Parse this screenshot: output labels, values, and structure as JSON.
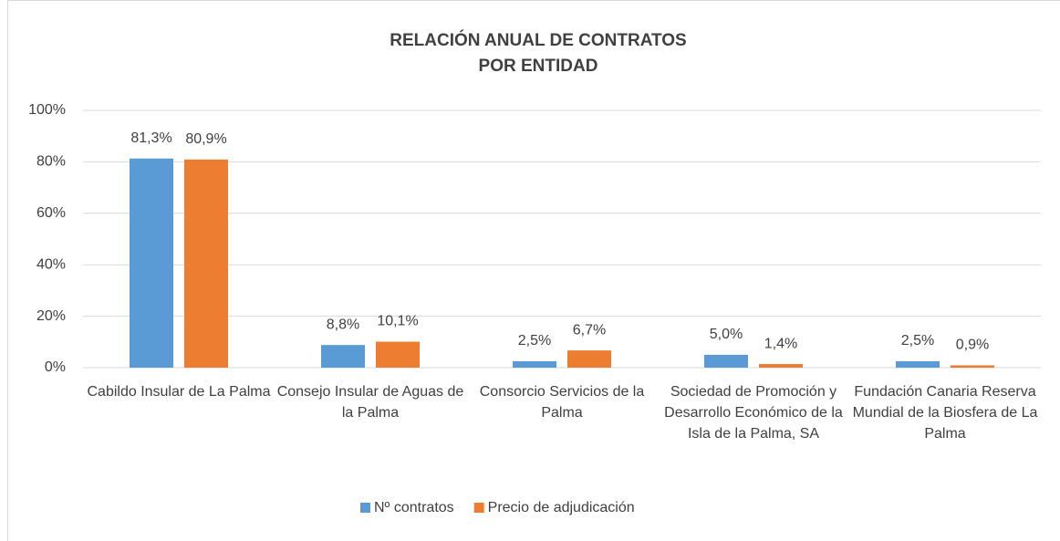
{
  "chart_data": {
    "type": "bar",
    "title": [
      "RELACIÓN ANUAL DE CONTRATOS",
      "POR ENTIDAD"
    ],
    "categories": [
      "Cabildo Insular de La Palma",
      "Consejo Insular de Aguas de la Palma",
      "Consorcio Servicios de la Palma",
      "Sociedad de Promoción y Desarrollo Económico de la Isla de la Palma, SA",
      "Fundación Canaria Reserva Mundial de la Biosfera de La Palma"
    ],
    "series": [
      {
        "name": "Nº contratos",
        "color": "#5b9bd5",
        "values": [
          81.3,
          8.8,
          2.5,
          5.0,
          2.5
        ],
        "value_labels": [
          "81,3%",
          "8,8%",
          "2,5%",
          "5,0%",
          "2,5%"
        ]
      },
      {
        "name": "Precio de adjudicación",
        "color": "#ed7d31",
        "values": [
          80.9,
          10.1,
          6.7,
          1.4,
          0.9
        ],
        "value_labels": [
          "80,9%",
          "10,1%",
          "6,7%",
          "1,4%",
          "0,9%"
        ]
      }
    ],
    "ylim": [
      0,
      100
    ],
    "yticks": [
      {
        "value": 0,
        "label": "0%"
      },
      {
        "value": 20,
        "label": "20%"
      },
      {
        "value": 40,
        "label": "40%"
      },
      {
        "value": 60,
        "label": "60%"
      },
      {
        "value": 80,
        "label": "80%"
      },
      {
        "value": 100,
        "label": "100%"
      }
    ],
    "grid": true,
    "legend": "bottom"
  }
}
